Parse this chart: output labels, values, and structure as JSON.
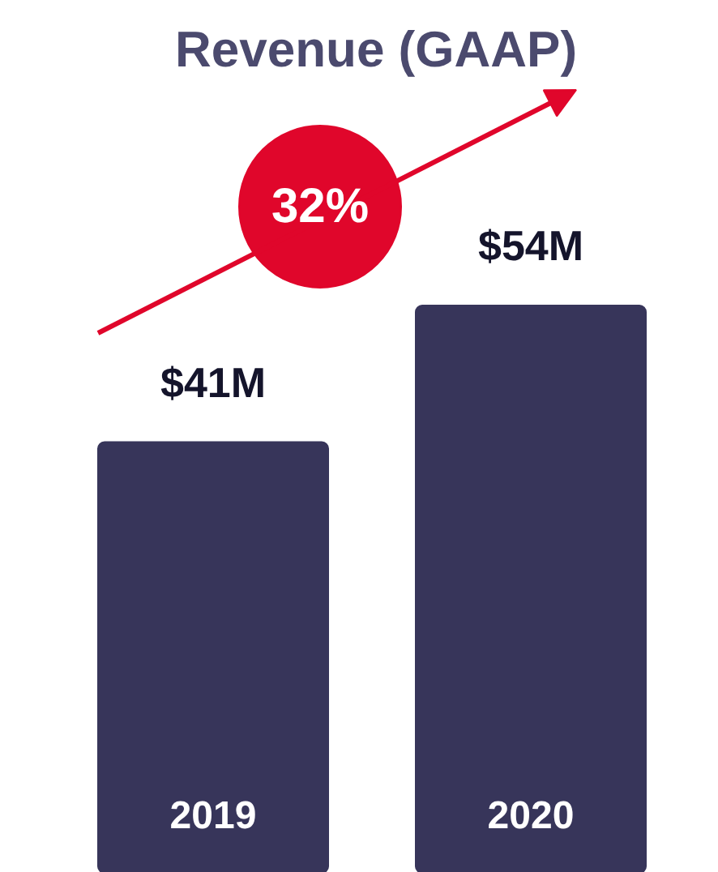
{
  "chart_data": {
    "type": "bar",
    "title": "Revenue (GAAP)",
    "categories": [
      "2019",
      "2020"
    ],
    "values": [
      41,
      54
    ],
    "value_labels": [
      "$41M",
      "$54M"
    ],
    "color": "#37355a",
    "annotations": [
      "32%"
    ]
  }
}
